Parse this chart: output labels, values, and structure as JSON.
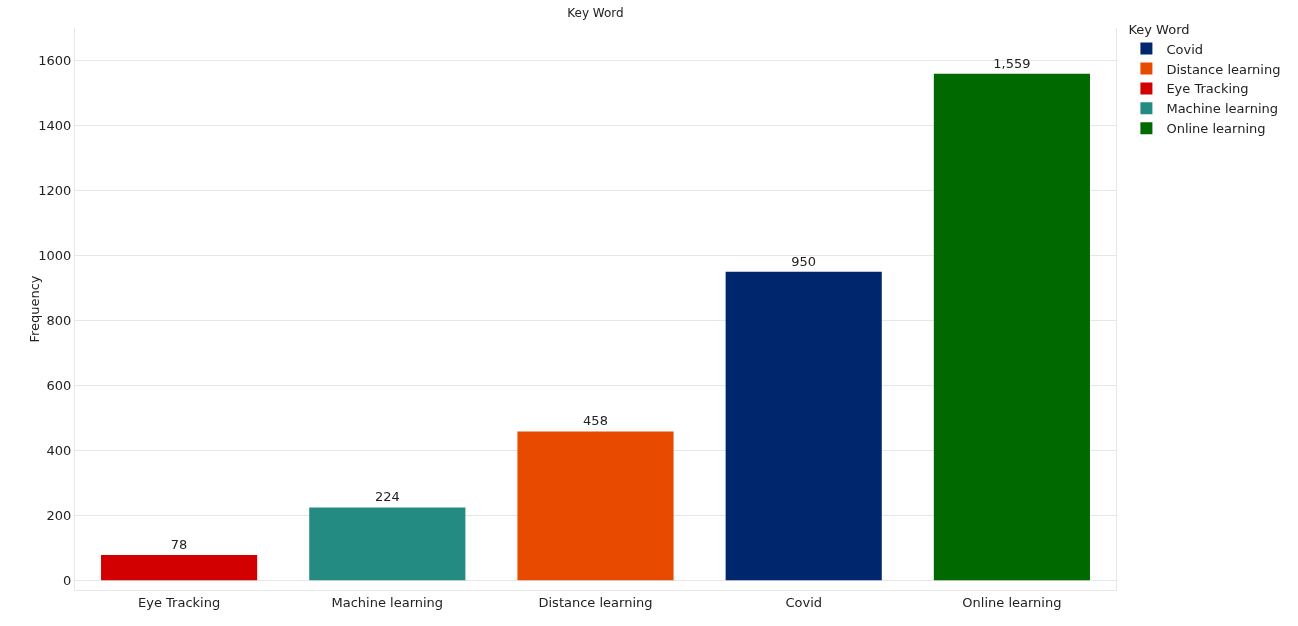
{
  "chart_data": {
    "type": "bar",
    "xlabel": "Key Word",
    "ylabel": "Frequency",
    "legend_title": "Key Word",
    "categories": [
      "Eye Tracking",
      "Machine learning",
      "Distance learning",
      "Covid",
      "Online learning"
    ],
    "series": [
      {
        "name": "Covid",
        "color": "#00266e",
        "values": [
          null,
          null,
          null,
          950,
          null
        ],
        "value_labels": [
          null,
          null,
          null,
          "950",
          null
        ]
      },
      {
        "name": "Distance learning",
        "color": "#e84a00",
        "values": [
          null,
          null,
          458,
          null,
          null
        ],
        "value_labels": [
          null,
          null,
          "458",
          null,
          null
        ]
      },
      {
        "name": "Eye Tracking",
        "color": "#d20000",
        "values": [
          78,
          null,
          null,
          null,
          null
        ],
        "value_labels": [
          "78",
          null,
          null,
          null,
          null
        ]
      },
      {
        "name": "Machine learning",
        "color": "#238b82",
        "values": [
          null,
          224,
          null,
          null,
          null
        ],
        "value_labels": [
          null,
          "224",
          null,
          null,
          null
        ]
      },
      {
        "name": "Online learning",
        "color": "#006a00",
        "values": [
          null,
          null,
          null,
          null,
          1559
        ],
        "value_labels": [
          null,
          null,
          null,
          null,
          "1,559"
        ]
      }
    ],
    "ylim": [
      -30,
      1700
    ],
    "yticks": [
      0,
      200,
      400,
      600,
      800,
      1000,
      1200,
      1400,
      1600
    ],
    "grid": "y",
    "legend": "top right"
  }
}
